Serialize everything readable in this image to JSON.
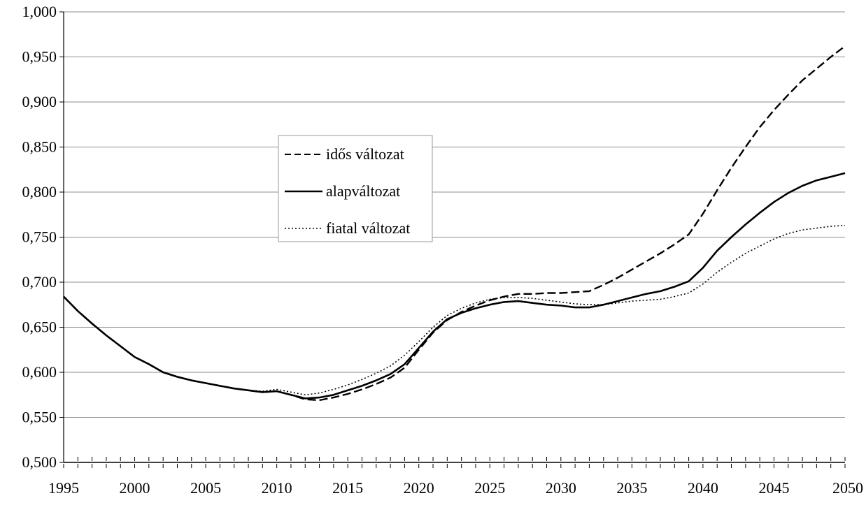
{
  "chart_data": {
    "type": "line",
    "title": "",
    "xlabel": "",
    "ylabel": "",
    "xlim": [
      1995,
      2050
    ],
    "ylim": [
      0.5,
      1.0
    ],
    "x_ticks": [
      1995,
      2000,
      2005,
      2010,
      2015,
      2020,
      2025,
      2030,
      2035,
      2040,
      2045,
      2050
    ],
    "x_tick_labels": [
      "1995",
      "2000",
      "2005",
      "2010",
      "2015",
      "2020",
      "2025",
      "2030",
      "2035",
      "2040",
      "2045",
      "2050"
    ],
    "y_ticks": [
      0.5,
      0.55,
      0.6,
      0.65,
      0.7,
      0.75,
      0.8,
      0.85,
      0.9,
      0.95,
      1.0
    ],
    "y_tick_labels": [
      "0,500",
      "0,550",
      "0,600",
      "0,650",
      "0,700",
      "0,750",
      "0,800",
      "0,850",
      "0,900",
      "0,950",
      "1,000"
    ],
    "grid": true,
    "legend_position": "center-left",
    "legend": [
      "idős változat",
      "alapváltozat",
      "fiatal változat"
    ],
    "x": [
      1995,
      1996,
      1997,
      1998,
      1999,
      2000,
      2001,
      2002,
      2003,
      2004,
      2005,
      2006,
      2007,
      2008,
      2009,
      2010,
      2011,
      2012,
      2013,
      2014,
      2015,
      2016,
      2017,
      2018,
      2019,
      2020,
      2021,
      2022,
      2023,
      2024,
      2025,
      2026,
      2027,
      2028,
      2029,
      2030,
      2031,
      2032,
      2033,
      2034,
      2035,
      2036,
      2037,
      2038,
      2039,
      2040,
      2041,
      2042,
      2043,
      2044,
      2045,
      2046,
      2047,
      2048,
      2049,
      2050
    ],
    "series": [
      {
        "name": "idős változat",
        "style": "dashed",
        "color": "#000000",
        "values": [
          0.684,
          0.668,
          0.654,
          0.641,
          0.629,
          0.617,
          0.609,
          0.6,
          0.595,
          0.591,
          0.588,
          0.585,
          0.582,
          0.58,
          0.578,
          0.579,
          0.575,
          0.57,
          0.569,
          0.572,
          0.576,
          0.581,
          0.587,
          0.594,
          0.605,
          0.625,
          0.644,
          0.658,
          0.667,
          0.674,
          0.68,
          0.684,
          0.687,
          0.687,
          0.688,
          0.688,
          0.689,
          0.69,
          0.697,
          0.705,
          0.714,
          0.723,
          0.732,
          0.742,
          0.753,
          0.776,
          0.802,
          0.827,
          0.85,
          0.872,
          0.891,
          0.908,
          0.924,
          0.937,
          0.95,
          0.962
        ]
      },
      {
        "name": "alapváltozat",
        "style": "solid",
        "color": "#000000",
        "values": [
          0.684,
          0.668,
          0.654,
          0.641,
          0.629,
          0.617,
          0.609,
          0.6,
          0.595,
          0.591,
          0.588,
          0.585,
          0.582,
          0.58,
          0.578,
          0.579,
          0.575,
          0.571,
          0.572,
          0.575,
          0.58,
          0.585,
          0.591,
          0.598,
          0.609,
          0.627,
          0.645,
          0.659,
          0.666,
          0.671,
          0.675,
          0.678,
          0.679,
          0.677,
          0.675,
          0.674,
          0.672,
          0.672,
          0.675,
          0.679,
          0.683,
          0.687,
          0.69,
          0.695,
          0.701,
          0.716,
          0.735,
          0.75,
          0.764,
          0.777,
          0.789,
          0.799,
          0.807,
          0.813,
          0.817,
          0.821
        ]
      },
      {
        "name": "fiatal változat",
        "style": "dotted",
        "color": "#000000",
        "values": [
          0.684,
          0.668,
          0.654,
          0.641,
          0.629,
          0.617,
          0.609,
          0.6,
          0.595,
          0.591,
          0.588,
          0.585,
          0.582,
          0.58,
          0.579,
          0.581,
          0.578,
          0.575,
          0.577,
          0.581,
          0.586,
          0.592,
          0.599,
          0.607,
          0.619,
          0.634,
          0.65,
          0.663,
          0.671,
          0.677,
          0.681,
          0.683,
          0.683,
          0.682,
          0.68,
          0.678,
          0.676,
          0.675,
          0.675,
          0.677,
          0.679,
          0.68,
          0.681,
          0.684,
          0.688,
          0.698,
          0.711,
          0.722,
          0.732,
          0.74,
          0.748,
          0.754,
          0.758,
          0.76,
          0.762,
          0.763
        ]
      }
    ]
  }
}
